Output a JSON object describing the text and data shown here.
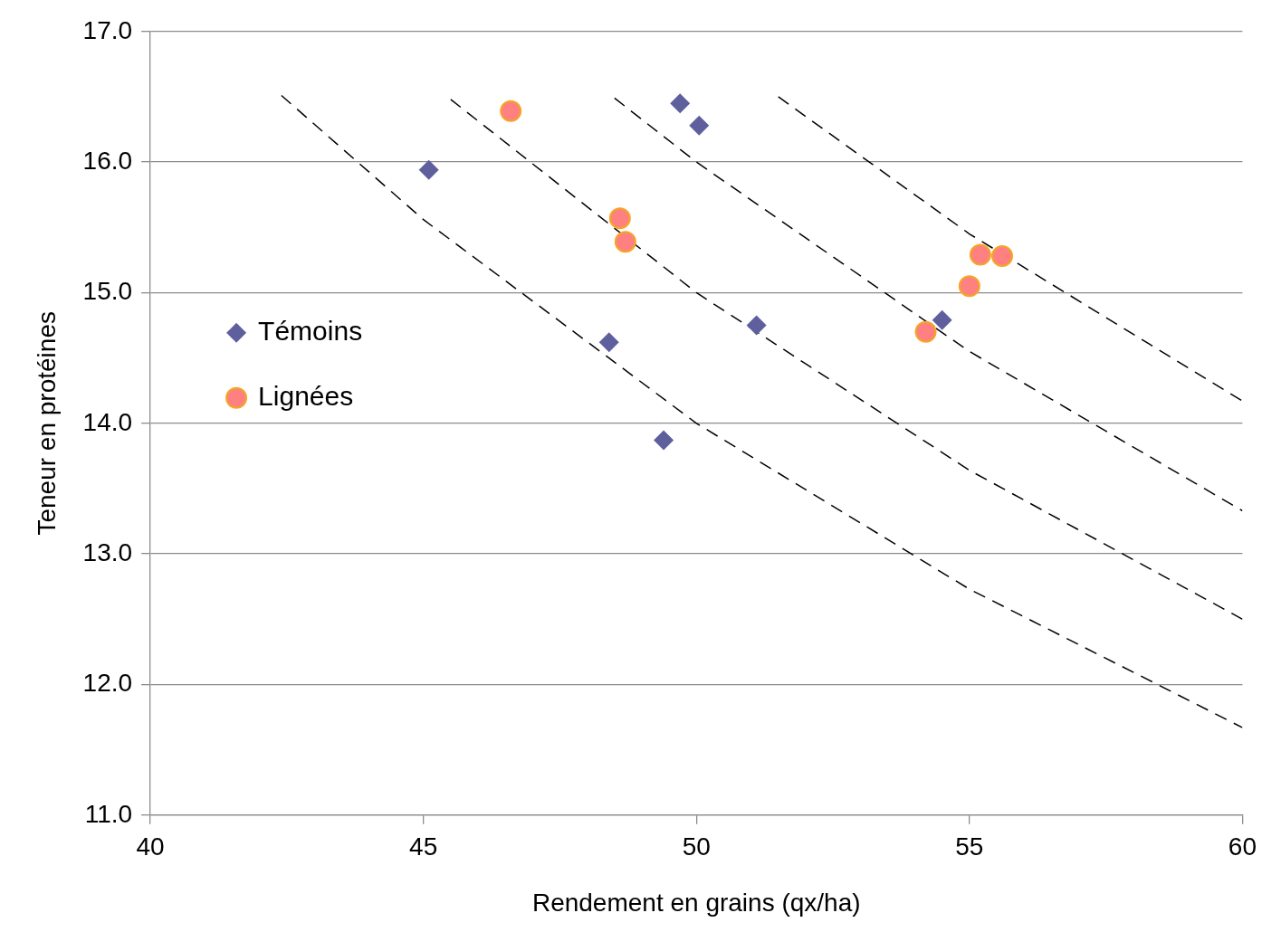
{
  "chart_data": {
    "type": "scatter",
    "xlabel": "Rendement en grains (qx/ha)",
    "ylabel": "Teneur en protéines",
    "xlim": [
      40,
      60
    ],
    "xticks": [
      40,
      45,
      50,
      55,
      60
    ],
    "ylim": [
      11,
      17
    ],
    "yticks": [
      {
        "value": 11,
        "label": "11.0"
      },
      {
        "value": 12,
        "label": "12.0"
      },
      {
        "value": 13,
        "label": "13.0"
      },
      {
        "value": 14,
        "label": "14.0"
      },
      {
        "value": 15,
        "label": "15.0"
      },
      {
        "value": 16,
        "label": "16.0"
      },
      {
        "value": 17,
        "label": "17.0"
      }
    ],
    "grid": "y",
    "legend": "left",
    "series": [
      {
        "name": "Témoins",
        "marker": "diamond",
        "color": "#5f5f9e",
        "x": [
          45.1,
          49.7,
          50.05,
          48.4,
          49.4,
          51.1,
          54.5
        ],
        "values": [
          15.94,
          16.45,
          16.28,
          14.62,
          13.87,
          14.75,
          14.79
        ]
      },
      {
        "name": "Lignées",
        "marker": "circle",
        "color": "#ff8080",
        "x": [
          46.6,
          48.6,
          48.7,
          55.2,
          55.6,
          55.0,
          54.2
        ],
        "values": [
          16.39,
          15.57,
          15.39,
          15.29,
          15.28,
          15.05,
          14.7
        ]
      },
      {
        "type": "line",
        "line_style": "dashed",
        "marker": "none",
        "color": "#000000",
        "x": [
          42.4,
          45,
          50,
          55,
          60
        ],
        "values": [
          16.51,
          15.56,
          14.0,
          12.73,
          11.67
        ]
      },
      {
        "type": "line",
        "line_style": "dashed",
        "marker": "none",
        "color": "#000000",
        "x": [
          45.5,
          50,
          55,
          60
        ],
        "values": [
          16.48,
          15.0,
          13.64,
          12.5
        ]
      },
      {
        "type": "line",
        "line_style": "dashed",
        "marker": "none",
        "color": "#000000",
        "x": [
          48.5,
          50,
          55,
          60
        ],
        "values": [
          16.49,
          16.0,
          14.55,
          13.33
        ]
      },
      {
        "type": "line",
        "line_style": "dashed",
        "marker": "none",
        "color": "#000000",
        "x": [
          51.5,
          55,
          60
        ],
        "values": [
          16.5,
          15.45,
          14.17
        ]
      }
    ]
  }
}
